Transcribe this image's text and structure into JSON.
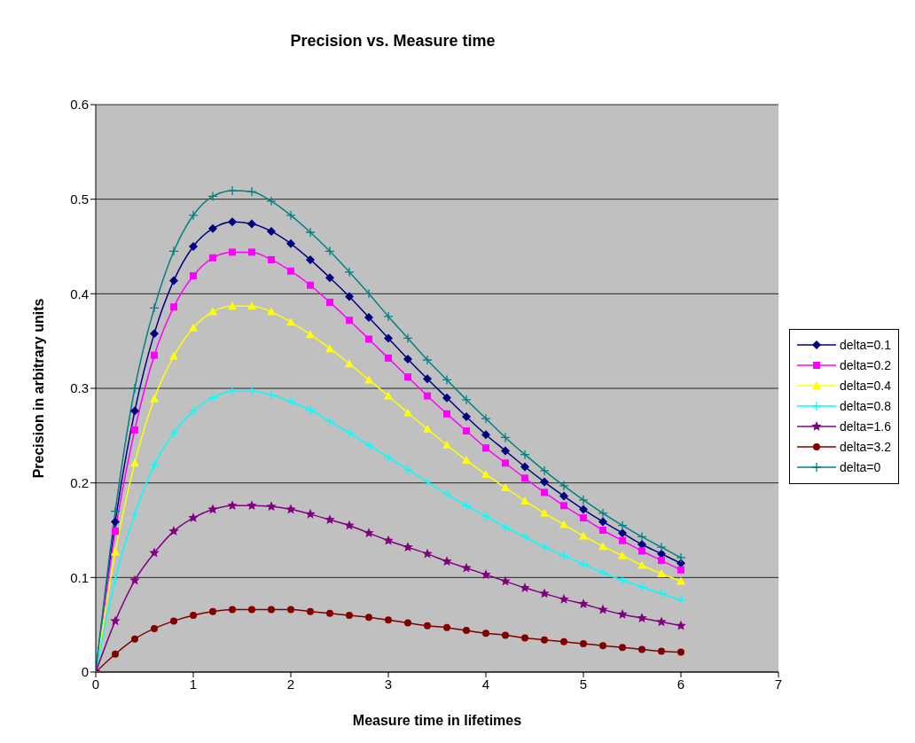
{
  "chart_data": {
    "type": "line",
    "title": "Precision vs. Measure time",
    "xlabel": "Measure time in lifetimes",
    "ylabel": "Precision in arbitrary units",
    "x": [
      0,
      0.2,
      0.4,
      0.6,
      0.8,
      1,
      1.2,
      1.4,
      1.6,
      1.8,
      2,
      2.2,
      2.4,
      2.6,
      2.8,
      3,
      3.2,
      3.4,
      3.6,
      3.8,
      4,
      4.2,
      4.4,
      4.6,
      4.8,
      5,
      5.2,
      5.4,
      5.6,
      5.8,
      6
    ],
    "xlim": [
      0,
      7
    ],
    "xticks": [
      0,
      1,
      2,
      3,
      4,
      5,
      6,
      7
    ],
    "ylim": [
      0,
      0.6
    ],
    "yticks": [
      0,
      0.1,
      0.2,
      0.3,
      0.4,
      0.5,
      0.6
    ],
    "grid": "y",
    "legend": "right",
    "series": [
      {
        "name": "delta=0.1",
        "color": "#000080",
        "marker": "diamond",
        "values": [
          0,
          0.159,
          0.276,
          0.358,
          0.414,
          0.45,
          0.469,
          0.476,
          0.474,
          0.466,
          0.453,
          0.436,
          0.417,
          0.397,
          0.375,
          0.353,
          0.331,
          0.31,
          0.29,
          0.27,
          0.251,
          0.234,
          0.217,
          0.201,
          0.186,
          0.172,
          0.159,
          0.147,
          0.135,
          0.125,
          0.115
        ]
      },
      {
        "name": "delta=0.2",
        "color": "#ff00ff",
        "marker": "square",
        "values": [
          0,
          0.149,
          0.256,
          0.335,
          0.386,
          0.419,
          0.438,
          0.444,
          0.444,
          0.436,
          0.424,
          0.409,
          0.391,
          0.372,
          0.352,
          0.332,
          0.312,
          0.292,
          0.273,
          0.255,
          0.237,
          0.221,
          0.205,
          0.19,
          0.176,
          0.163,
          0.15,
          0.139,
          0.128,
          0.118,
          0.108
        ]
      },
      {
        "name": "delta=0.4",
        "color": "#ffff00",
        "marker": "triangle",
        "values": [
          0,
          0.127,
          0.221,
          0.289,
          0.334,
          0.364,
          0.381,
          0.387,
          0.387,
          0.381,
          0.37,
          0.357,
          0.342,
          0.326,
          0.309,
          0.292,
          0.274,
          0.257,
          0.24,
          0.224,
          0.209,
          0.195,
          0.181,
          0.168,
          0.156,
          0.144,
          0.133,
          0.123,
          0.113,
          0.104,
          0.096
        ]
      },
      {
        "name": "delta=0.8",
        "color": "#00ffff",
        "marker": "cross",
        "values": [
          0,
          0.098,
          0.167,
          0.219,
          0.253,
          0.276,
          0.29,
          0.297,
          0.297,
          0.293,
          0.286,
          0.277,
          0.265,
          0.253,
          0.24,
          0.227,
          0.214,
          0.201,
          0.188,
          0.176,
          0.165,
          0.153,
          0.143,
          0.132,
          0.123,
          0.114,
          0.105,
          0.097,
          0.09,
          0.083,
          0.076
        ]
      },
      {
        "name": "delta=1.6",
        "color": "#800080",
        "marker": "star",
        "values": [
          0,
          0.054,
          0.097,
          0.126,
          0.149,
          0.163,
          0.172,
          0.176,
          0.176,
          0.175,
          0.172,
          0.167,
          0.161,
          0.155,
          0.147,
          0.139,
          0.132,
          0.125,
          0.117,
          0.11,
          0.103,
          0.096,
          0.089,
          0.083,
          0.077,
          0.072,
          0.066,
          0.061,
          0.057,
          0.053,
          0.049
        ]
      },
      {
        "name": "delta=3.2",
        "color": "#800000",
        "marker": "circle",
        "values": [
          0,
          0.019,
          0.035,
          0.046,
          0.054,
          0.06,
          0.064,
          0.066,
          0.066,
          0.066,
          0.066,
          0.064,
          0.062,
          0.06,
          0.058,
          0.055,
          0.052,
          0.049,
          0.047,
          0.044,
          0.041,
          0.039,
          0.036,
          0.034,
          0.032,
          0.03,
          0.028,
          0.026,
          0.024,
          0.022,
          0.021
        ]
      },
      {
        "name": "delta=0",
        "color": "#008080",
        "marker": "cross",
        "values": [
          0,
          0.17,
          0.3,
          0.385,
          0.445,
          0.483,
          0.503,
          0.509,
          0.508,
          0.498,
          0.483,
          0.465,
          0.445,
          0.423,
          0.4,
          0.376,
          0.353,
          0.33,
          0.309,
          0.288,
          0.268,
          0.248,
          0.23,
          0.213,
          0.197,
          0.182,
          0.168,
          0.155,
          0.143,
          0.132,
          0.121
        ]
      }
    ]
  }
}
